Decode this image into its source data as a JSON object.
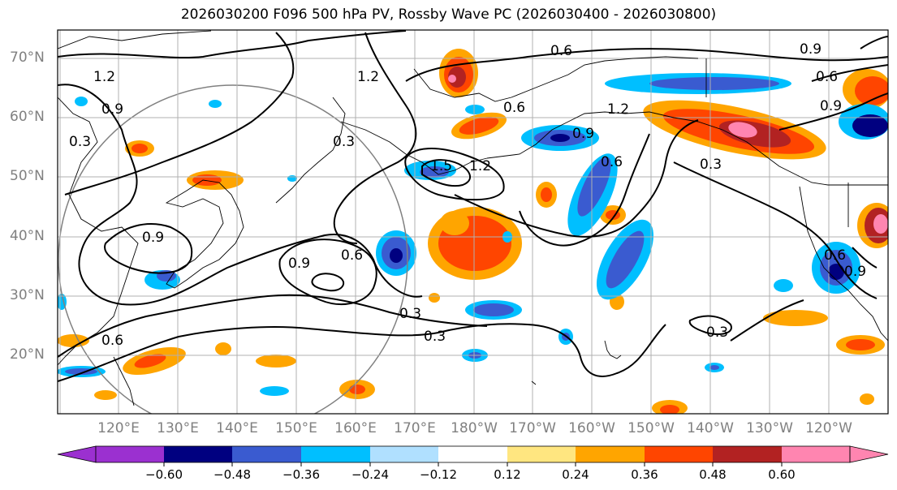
{
  "title": "2026030200 F096 500 hPa PV, Rossby Wave PC (2026030400 - 2026030800)",
  "latitude_labels": [
    "70°N",
    "60°N",
    "50°N",
    "40°N",
    "30°N",
    "20°N"
  ],
  "longitude_labels": [
    "120°E",
    "130°E",
    "140°E",
    "150°E",
    "160°E",
    "170°E",
    "180°W",
    "170°W",
    "160°W",
    "150°W",
    "140°W",
    "130°W",
    "120°W"
  ],
  "colorbar": {
    "tick_labels": [
      "−0.60",
      "−0.48",
      "−0.36",
      "−0.24",
      "−0.12",
      "0.12",
      "0.24",
      "0.36",
      "0.48",
      "0.60"
    ],
    "colors": [
      "#9b30d0",
      "#000080",
      "#3a5bd0",
      "#00bfff",
      "#b0e0ff",
      "#ffffff",
      "#ffe680",
      "#ffa500",
      "#ff4500",
      "#b22222",
      "#ff85b0"
    ]
  },
  "contour_labels": [
    "0.6",
    "0.9",
    "1.2",
    "0.3",
    "0.9",
    "0.6",
    "0.6",
    "1.2",
    "0.9",
    "0.6",
    "0.3",
    "1.5",
    "1.2",
    "0.9",
    "0.6",
    "0.3",
    "0.9",
    "0.3",
    "0.3",
    "0.9",
    "0.6",
    "1.2",
    "0.3",
    "0.6",
    "0.9"
  ],
  "colors": {
    "coast": "#000000",
    "grid": "#b0b0b0",
    "axis_label": "#808080"
  }
}
